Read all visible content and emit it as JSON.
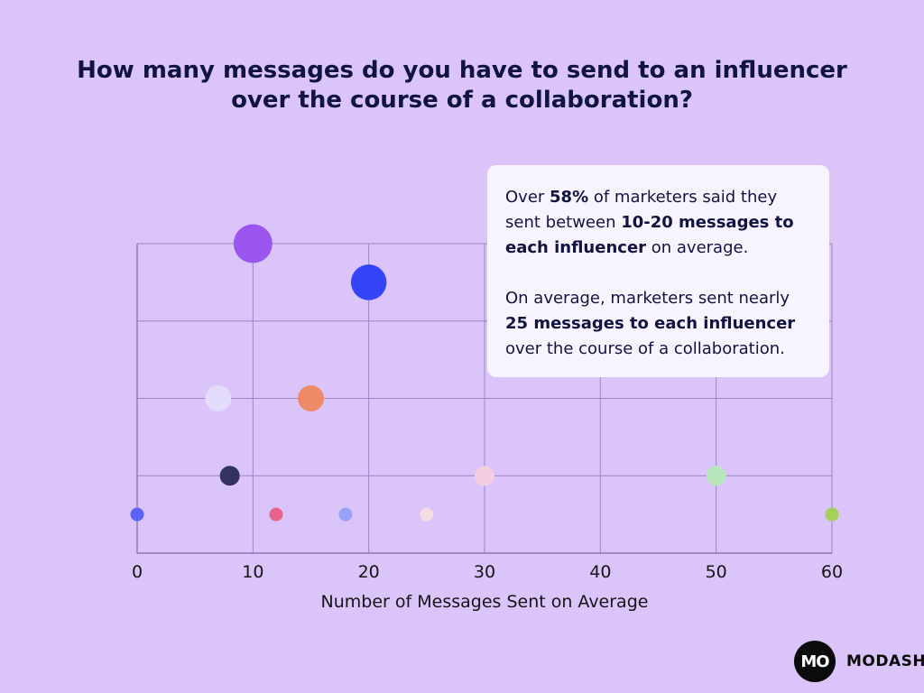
{
  "title": "How many messages do you have to send to an influencer over the course of a collaboration?",
  "callout": {
    "p1": [
      {
        "text": "Over ",
        "bold": false
      },
      {
        "text": "58%",
        "bold": true
      },
      {
        "text": " of marketers said they sent between ",
        "bold": false
      },
      {
        "text": "10-20 messages to each influencer",
        "bold": true
      },
      {
        "text": " on average.",
        "bold": false
      }
    ],
    "p2": [
      {
        "text": "On average, marketers sent nearly ",
        "bold": false
      },
      {
        "text": "25 messages to each influencer",
        "bold": true
      },
      {
        "text": " over the course of a collaboration.",
        "bold": false
      }
    ]
  },
  "logo": {
    "mark": "MO",
    "name": "MODASH"
  },
  "colors": {
    "background": "#dbc4f9",
    "grid": "#9b86c4",
    "text": "#111440"
  },
  "chart_data": {
    "type": "scatter",
    "xlabel": "Number of Messages Sent on Average",
    "ylabel": "",
    "xlim": [
      0,
      60
    ],
    "ylim": [
      0,
      4
    ],
    "xticks": [
      0,
      10,
      20,
      30,
      40,
      50,
      60
    ],
    "grid": true,
    "points": [
      {
        "x": 0,
        "y": 0.5,
        "size": 1,
        "color": "#5a63f5"
      },
      {
        "x": 8,
        "y": 1,
        "size": 2,
        "color": "#33335d"
      },
      {
        "x": 7,
        "y": 2,
        "size": 3,
        "color": "#e4dcfb"
      },
      {
        "x": 10,
        "y": 4,
        "size": 5,
        "color": "#9a56ee"
      },
      {
        "x": 12,
        "y": 0.5,
        "size": 1,
        "color": "#e8628c"
      },
      {
        "x": 15,
        "y": 2,
        "size": 3,
        "color": "#ef8a68"
      },
      {
        "x": 18,
        "y": 0.5,
        "size": 1,
        "color": "#97a1f9"
      },
      {
        "x": 20,
        "y": 3.5,
        "size": 4.5,
        "color": "#3445f8"
      },
      {
        "x": 25,
        "y": 0.5,
        "size": 1,
        "color": "#f5dde4"
      },
      {
        "x": 30,
        "y": 1,
        "size": 2,
        "color": "#f4cde0"
      },
      {
        "x": 50,
        "y": 1,
        "size": 2,
        "color": "#b9e7bc"
      },
      {
        "x": 60,
        "y": 0.5,
        "size": 1,
        "color": "#a3d158"
      }
    ]
  }
}
